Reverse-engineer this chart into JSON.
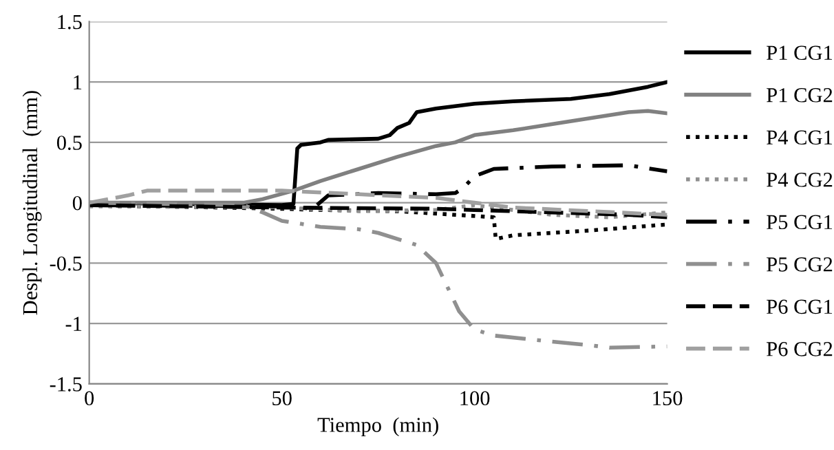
{
  "chart_data": {
    "type": "line",
    "xlabel": "Tiempo  (min)",
    "ylabel": "Despl. Longitudinal  (mm)",
    "xlim": [
      0,
      150
    ],
    "xticks": [
      0,
      50,
      100,
      150
    ],
    "ylim": [
      -1.5,
      1.5
    ],
    "yticks": [
      -1.5,
      -1,
      -0.5,
      0,
      0.5,
      1,
      1.5
    ],
    "grid": "y",
    "legend": "right",
    "series": [
      {
        "name": "P1 CG1",
        "color": "#000000",
        "line_style": "solid",
        "x": [
          0,
          50,
          53,
          54,
          55,
          60,
          62,
          75,
          78,
          80,
          83,
          85,
          90,
          100,
          110,
          125,
          135,
          145,
          150
        ],
        "values": [
          0,
          -0.02,
          -0.01,
          0.45,
          0.48,
          0.5,
          0.52,
          0.53,
          0.56,
          0.62,
          0.66,
          0.75,
          0.78,
          0.82,
          0.84,
          0.86,
          0.9,
          0.96,
          1.0
        ]
      },
      {
        "name": "P1 CG2",
        "color": "#808080",
        "line_style": "solid",
        "x": [
          0,
          40,
          45,
          53,
          60,
          70,
          80,
          90,
          95,
          100,
          110,
          120,
          130,
          140,
          145,
          150
        ],
        "values": [
          0,
          0,
          0.03,
          0.1,
          0.18,
          0.28,
          0.38,
          0.47,
          0.5,
          0.56,
          0.6,
          0.65,
          0.7,
          0.75,
          0.76,
          0.74
        ]
      },
      {
        "name": "P4 CG1",
        "color": "#000000",
        "line_style": "dotted",
        "x": [
          0,
          50,
          60,
          80,
          95,
          105,
          105.5,
          110,
          130,
          150
        ],
        "values": [
          -0.02,
          -0.05,
          -0.06,
          -0.07,
          -0.1,
          -0.12,
          -0.3,
          -0.27,
          -0.23,
          -0.18
        ]
      },
      {
        "name": "P4 CG2",
        "color": "#909090",
        "line_style": "dotted",
        "x": [
          0,
          50,
          70,
          90,
          100,
          110,
          120,
          135,
          150
        ],
        "values": [
          -0.03,
          -0.04,
          -0.07,
          -0.06,
          -0.02,
          -0.06,
          -0.1,
          -0.12,
          -0.08
        ]
      },
      {
        "name": "P5 CG1",
        "color": "#000000",
        "line_style": "dashdot",
        "x": [
          0,
          50,
          58,
          62,
          75,
          90,
          95,
          97,
          100,
          105,
          120,
          140,
          150
        ],
        "values": [
          -0.02,
          -0.03,
          -0.05,
          0.06,
          0.08,
          0.07,
          0.08,
          0.12,
          0.22,
          0.28,
          0.3,
          0.31,
          0.26
        ]
      },
      {
        "name": "P5 CG2",
        "color": "#909090",
        "line_style": "dashdot",
        "x": [
          0,
          40,
          45,
          50,
          60,
          70,
          75,
          85,
          90,
          93,
          96,
          100,
          105,
          120,
          130,
          135,
          150
        ],
        "values": [
          0,
          -0.02,
          -0.08,
          -0.15,
          -0.2,
          -0.22,
          -0.25,
          -0.35,
          -0.5,
          -0.7,
          -0.9,
          -1.05,
          -1.1,
          -1.15,
          -1.18,
          -1.2,
          -1.19
        ]
      },
      {
        "name": "P6 CG1",
        "color": "#000000",
        "line_style": "dashed",
        "x": [
          0,
          50,
          90,
          100,
          120,
          140,
          150
        ],
        "values": [
          -0.02,
          -0.04,
          -0.05,
          -0.06,
          -0.08,
          -0.1,
          -0.12
        ]
      },
      {
        "name": "P6 CG2",
        "color": "#a0a0a0",
        "line_style": "dashed",
        "x": [
          0,
          10,
          15,
          30,
          50,
          70,
          90,
          100,
          110,
          130,
          150
        ],
        "values": [
          0,
          0.06,
          0.1,
          0.1,
          0.1,
          0.07,
          0.04,
          0.0,
          -0.04,
          -0.07,
          -0.1
        ]
      }
    ]
  }
}
